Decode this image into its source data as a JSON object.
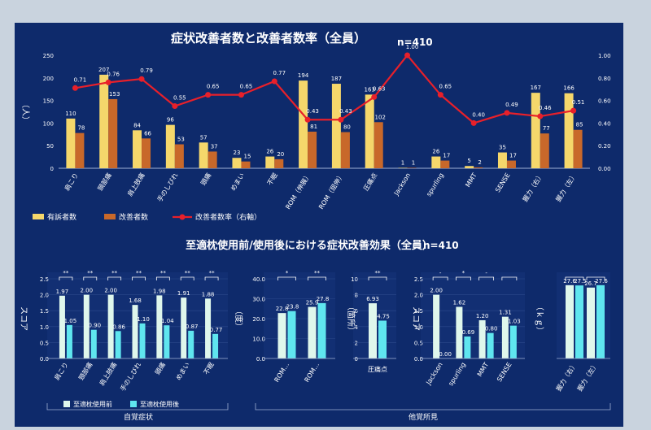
{
  "colors": {
    "panel": "#0e2a6b",
    "yellow": "#f5d76b",
    "orange": "#c8682a",
    "red": "#e8202a",
    "cyan": "#5fe6ef",
    "mint": "#dff7ec",
    "white": "#ffffff"
  },
  "chart_data": [
    {
      "type": "bar",
      "title": "症状改善者数と改善者数率（全員）",
      "n_label": "n=410",
      "ylabel": "（人）",
      "ylim": [
        0,
        250
      ],
      "yticks": [
        "0",
        "50",
        "100",
        "150",
        "200",
        "250"
      ],
      "y2lim": [
        0,
        1
      ],
      "y2ticks": [
        "0.00",
        "0.20",
        "0.40",
        "0.60",
        "0.80",
        "1.00"
      ],
      "categories": [
        "肩こり",
        "頸部痛",
        "肩上肢痛",
        "手のしびれ",
        "頭痛",
        "めまい",
        "不眠",
        "ROM（伸展）",
        "ROM（屈伸）",
        "圧痛点",
        "Jackson",
        "spurling",
        "MMT",
        "SENSE",
        "握力（右）",
        "握力（左）"
      ],
      "series": [
        {
          "name": "有訴者数",
          "values": [
            110,
            207,
            84,
            96,
            57,
            23,
            26,
            194,
            187,
            163,
            1,
            26,
            5,
            35,
            167,
            166
          ],
          "labels": [
            "110",
            "207",
            "84",
            "96",
            "57",
            "23",
            "26",
            "194",
            "187",
            "163",
            "1",
            "26",
            "5",
            "35",
            "167",
            "166"
          ]
        },
        {
          "name": "改善者数",
          "values": [
            78,
            153,
            66,
            53,
            37,
            15,
            20,
            81,
            80,
            102,
            1,
            17,
            2,
            17,
            77,
            85
          ],
          "labels": [
            "78",
            "153",
            "66",
            "53",
            "37",
            "15",
            "20",
            "81",
            "80",
            "102",
            "1",
            "17",
            "2",
            "17",
            "77",
            "85"
          ]
        },
        {
          "name": "改善者数率（右軸）",
          "axis": "right",
          "values": [
            0.71,
            0.76,
            0.79,
            0.55,
            0.65,
            0.65,
            0.77,
            0.43,
            0.43,
            0.63,
            1.0,
            0.65,
            0.4,
            0.49,
            0.46,
            0.51
          ],
          "labels": [
            "0.71",
            "0.76",
            "0.79",
            "0.55",
            "0.65",
            "0.65",
            "0.77",
            "0.43",
            "0.43",
            "0.63",
            "1.00",
            "0.65",
            "0.40",
            "0.49",
            "0.46",
            "0.51"
          ]
        }
      ],
      "legend": [
        "有訴者数",
        "改善者数",
        "改善者数率（右軸）"
      ]
    },
    {
      "type": "bar",
      "title": "至適枕使用前/使用後における症状改善効果（全員）",
      "n_label": "n=410",
      "legend": [
        "至適枕使用前",
        "至適枕使用後"
      ],
      "group_labels": [
        "自覚症状",
        "他覚所見"
      ],
      "panels": [
        {
          "ylabel": "スコア",
          "ylim": [
            0,
            2.5
          ],
          "yticks": [
            "0.0",
            "0.5",
            "1.0",
            "1.5",
            "2.0",
            "2.5"
          ],
          "categories": [
            "肩こり",
            "頸部痛",
            "肩上肢痛",
            "手のしびれ",
            "頭痛",
            "めまい",
            "不眠"
          ],
          "before": [
            1.97,
            2.0,
            2.0,
            1.68,
            1.98,
            1.91,
            1.88
          ],
          "after": [
            1.05,
            0.9,
            0.86,
            1.1,
            1.04,
            0.87,
            0.77
          ],
          "before_labels": [
            "1.97",
            "2.00",
            "2.00",
            "1.68",
            "1.98",
            "1.91",
            "1.88"
          ],
          "after_labels": [
            "1.05",
            "0.90",
            "0.86",
            "1.10",
            "1.04",
            "0.87",
            "0.77"
          ],
          "sig": [
            "**",
            "**",
            "**",
            "**",
            "**",
            "**",
            "**"
          ]
        },
        {
          "ylabel": "（度）",
          "ylim": [
            0,
            40
          ],
          "yticks": [
            "0.0",
            "10.0",
            "20.0",
            "30.0",
            "40.0"
          ],
          "categories": [
            "ROM…",
            "ROM…"
          ],
          "before": [
            22.8,
            25.9
          ],
          "after": [
            23.8,
            27.8
          ],
          "before_labels": [
            "22.8",
            "25.9"
          ],
          "after_labels": [
            "23.8",
            "27.8"
          ],
          "sig": [
            "*",
            "**"
          ]
        },
        {
          "ylabel": "（箇所）",
          "ylim": [
            0,
            10
          ],
          "yticks": [
            "0",
            "2",
            "4",
            "6",
            "8",
            "10"
          ],
          "categories": [
            "圧痛点"
          ],
          "before": [
            6.93
          ],
          "after": [
            4.75
          ],
          "before_labels": [
            "6.93"
          ],
          "after_labels": [
            "4.75"
          ],
          "sig": [
            "**"
          ]
        },
        {
          "ylabel": "スコア",
          "ylim": [
            0,
            2.5
          ],
          "yticks": [
            "0.0",
            "0.5",
            "1.0",
            "1.5",
            "2.0",
            "2.5"
          ],
          "categories": [
            "Jackson",
            "spurling",
            "MMT",
            "SENSE"
          ],
          "before": [
            2.0,
            1.62,
            1.2,
            1.31
          ],
          "after": [
            0.0,
            0.69,
            0.8,
            1.03
          ],
          "before_labels": [
            "2.00",
            "1.62",
            "1.20",
            "1.31"
          ],
          "after_labels": [
            "0.00",
            "0.69",
            "0.80",
            "1.03"
          ],
          "sig": [
            "-",
            "*",
            "-",
            ""
          ]
        },
        {
          "ylabel": "（ｋｇ）",
          "ylim": [
            0,
            30
          ],
          "yticks": [],
          "categories": [
            "握力（右）",
            "握力（左）"
          ],
          "before": [
            27.6,
            26.7
          ],
          "after": [
            27.5,
            27.6
          ],
          "before_labels": [
            "27.6",
            "26.7"
          ],
          "after_labels": [
            "27.5",
            "27.6"
          ],
          "sig": [
            "",
            ""
          ]
        }
      ]
    }
  ]
}
